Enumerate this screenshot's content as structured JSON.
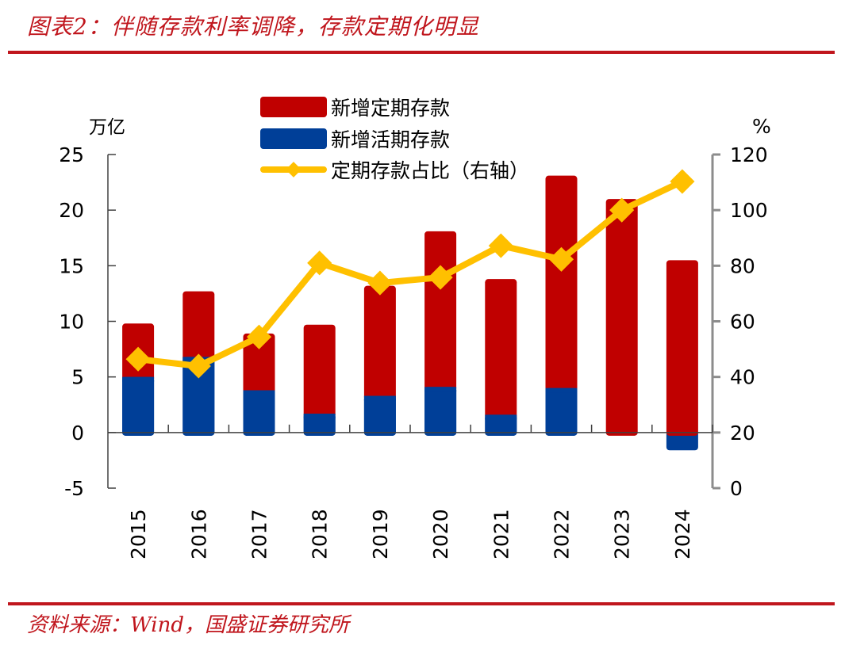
{
  "header": {
    "title": "图表2：伴随存款利率调降，存款定期化明显"
  },
  "footer": {
    "source": "资料来源：Wind，国盛证券研究所"
  },
  "colors": {
    "accent": "#c0161d",
    "time_deposit": "#c00000",
    "demand_deposit": "#003f98",
    "ratio_line": "#ffc000",
    "right_axis": "#8c8c8c"
  },
  "chart_data": {
    "type": "bar",
    "stacked": true,
    "categories": [
      "2015",
      "2016",
      "2017",
      "2018",
      "2019",
      "2020",
      "2021",
      "2022",
      "2023",
      "2024"
    ],
    "series": [
      {
        "name": "新增定期存款",
        "type": "bar",
        "axis": "left",
        "values": [
          4.8,
          5.9,
          5.1,
          8.0,
          9.9,
          14.0,
          12.2,
          19.1,
          21.0,
          15.5
        ]
      },
      {
        "name": "新增活期存款",
        "type": "bar",
        "axis": "left",
        "values": [
          5.0,
          6.8,
          3.8,
          1.7,
          3.3,
          4.1,
          1.6,
          4.0,
          -0.2,
          -1.6
        ]
      },
      {
        "name": "定期存款占比（右轴）",
        "type": "line",
        "axis": "right",
        "values": [
          46.4,
          43.9,
          54.4,
          81.0,
          73.8,
          75.8,
          87.2,
          82.3,
          100.0,
          110.3
        ]
      }
    ],
    "left_axis": {
      "label": "万亿",
      "ylim": [
        -5,
        25
      ],
      "ticks": [
        "25",
        "20",
        "15",
        "10",
        "5",
        "0",
        "-5"
      ],
      "tick_values": [
        25,
        20,
        15,
        10,
        5,
        0,
        -5
      ]
    },
    "right_axis": {
      "label": "%",
      "ylim": [
        0,
        120
      ],
      "ticks": [
        "120",
        "100",
        "80",
        "60",
        "40",
        "20",
        "0"
      ],
      "tick_values": [
        120,
        100,
        80,
        60,
        40,
        20,
        0
      ]
    },
    "legend": {
      "placement": "top-center",
      "entries": [
        "新增定期存款",
        "新增活期存款",
        "定期存款占比（右轴）"
      ]
    },
    "grid": false
  }
}
